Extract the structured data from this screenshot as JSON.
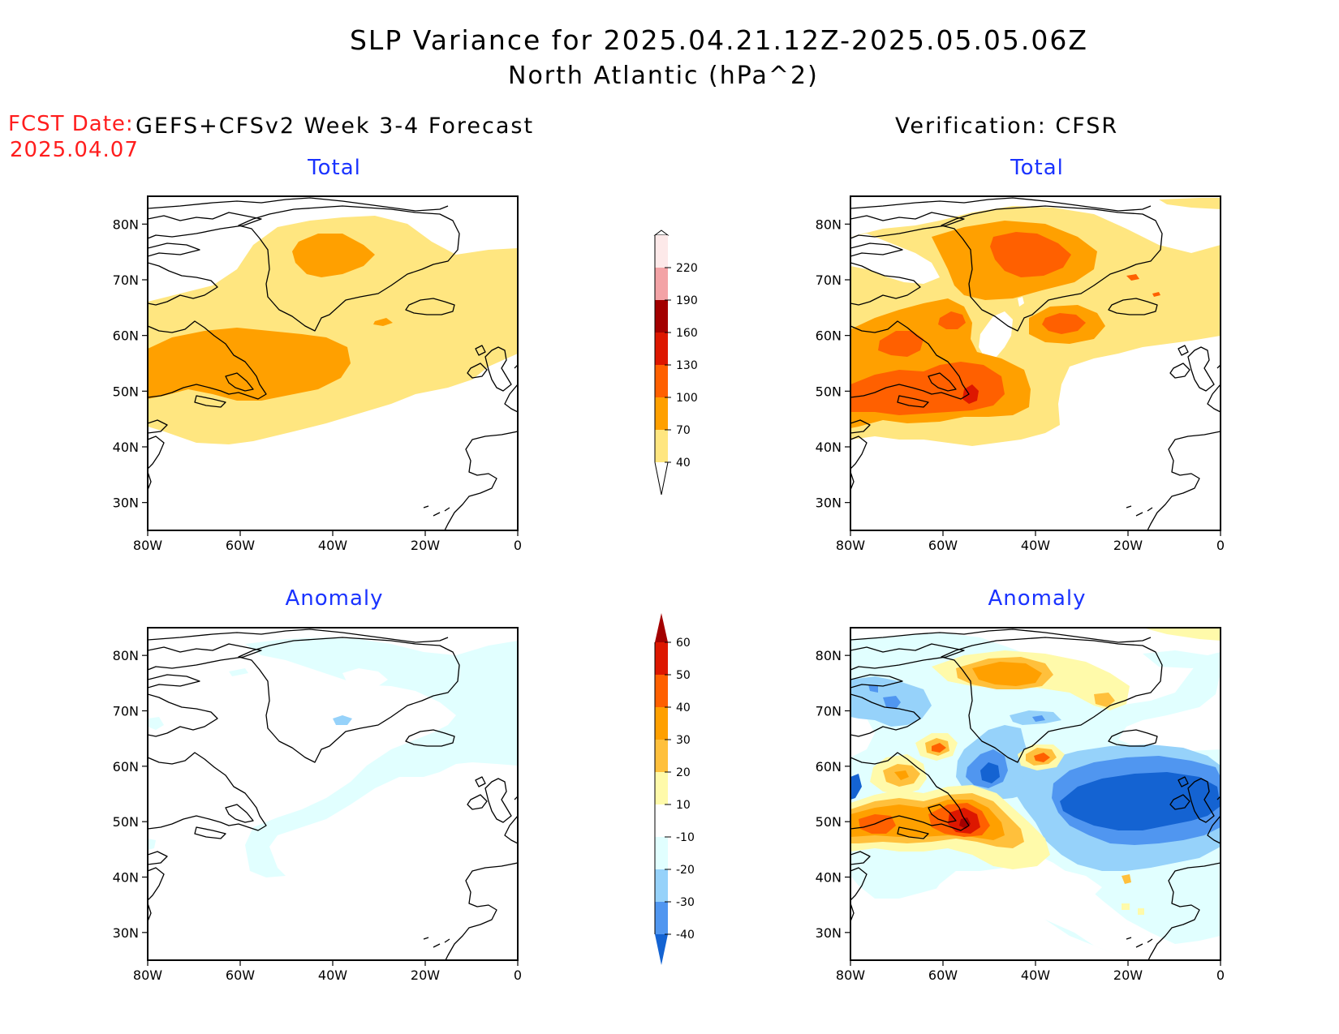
{
  "header": {
    "title": "SLP Variance for 2025.04.21.12Z-2025.05.05.06Z",
    "subtitle": "North Atlantic (hPa^2)",
    "fcst_label": "FCST Date:",
    "fcst_date": "2025.04.07",
    "left_heading": "GEFS+CFSv2 Week 3-4 Forecast",
    "right_heading": "Verification: CFSR"
  },
  "panels": {
    "forecast_total": "Total",
    "verif_total": "Total",
    "forecast_anomaly": "Anomaly",
    "verif_anomaly": "Anomaly"
  },
  "axes": {
    "lon_ticks": [
      "80W",
      "60W",
      "40W",
      "20W",
      "0"
    ],
    "lat_ticks": [
      "80N",
      "70N",
      "60N",
      "50N",
      "40N",
      "30N"
    ]
  },
  "total_colorbar": {
    "labels": [
      "220",
      "190",
      "160",
      "130",
      "100",
      "70",
      "40"
    ],
    "colors": [
      "#fde9e9",
      "#f3a3a6",
      "#a30000",
      "#dd1700",
      "#ff6000",
      "#ffa000",
      "#ffe680"
    ]
  },
  "anomaly_colorbar": {
    "labels": [
      "60",
      "50",
      "40",
      "30",
      "20",
      "10",
      "-10",
      "-20",
      "-30",
      "-40"
    ],
    "colors": [
      "#a30000",
      "#dd1700",
      "#ff6000",
      "#ffa000",
      "#ffc03c",
      "#fffaaa",
      "#ffffff",
      "#e1ffff",
      "#96d2fa",
      "#5096f0",
      "#1463d2"
    ]
  },
  "colors": {
    "y40": "#ffe680",
    "o70": "#ffa000",
    "o100": "#ff6000",
    "r130": "#dd1700",
    "ly10": "#fffaaa",
    "ly20": "#ffc03c",
    "lb10": "#e1ffff",
    "lb20": "#96d2fa",
    "lb30": "#5096f0",
    "lb40": "#1463d2",
    "title_blue": "#1a33ff",
    "fcst_red": "#ff1d1d"
  }
}
